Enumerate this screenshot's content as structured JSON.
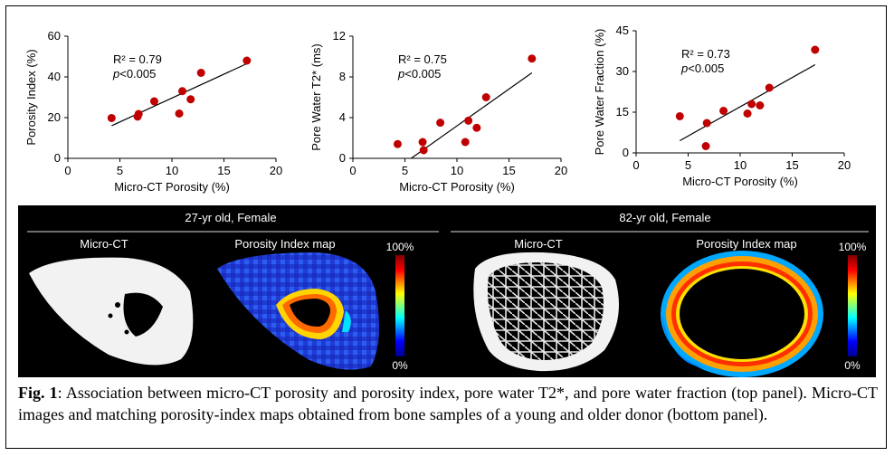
{
  "chart_data": [
    {
      "type": "scatter",
      "xlabel": "Micro-CT Porosity (%)",
      "ylabel": "Porosity Index (%)",
      "xlim": [
        0,
        20
      ],
      "xticks": [
        0,
        5,
        10,
        15,
        20
      ],
      "ylim": [
        0,
        60
      ],
      "yticks": [
        0,
        20,
        40,
        60
      ],
      "r2": "R² = 0.79",
      "p_italic": "p",
      "p_rest": "<0.005",
      "points": [
        [
          4.2,
          19.8
        ],
        [
          6.7,
          20.5
        ],
        [
          6.8,
          21.8
        ],
        [
          8.3,
          28
        ],
        [
          10.7,
          22
        ],
        [
          11.0,
          33
        ],
        [
          11.8,
          29
        ],
        [
          12.8,
          42
        ],
        [
          17.2,
          48
        ]
      ],
      "trend": [
        [
          4.2,
          16
        ],
        [
          17.2,
          46.5
        ]
      ]
    },
    {
      "type": "scatter",
      "xlabel": "Micro-CT Porosity (%)",
      "ylabel": "Pore Water T2* (ms)",
      "xlim": [
        0,
        20
      ],
      "xticks": [
        0,
        5,
        10,
        15,
        20
      ],
      "ylim": [
        0,
        12
      ],
      "yticks": [
        0,
        4,
        8,
        12
      ],
      "r2": "R² = 0.75",
      "p_italic": "p",
      "p_rest": "<0.005",
      "points": [
        [
          4.3,
          1.4
        ],
        [
          6.7,
          1.6
        ],
        [
          6.8,
          0.8
        ],
        [
          8.4,
          3.5
        ],
        [
          10.8,
          1.6
        ],
        [
          11.1,
          3.7
        ],
        [
          11.9,
          3.0
        ],
        [
          12.8,
          6.0
        ],
        [
          17.2,
          9.8
        ]
      ],
      "trend": [
        [
          5.6,
          0.0
        ],
        [
          17.2,
          8.4
        ]
      ]
    },
    {
      "type": "scatter",
      "xlabel": "Micro-CT Porosity (%)",
      "ylabel": "Pore Water Fraction (%)",
      "xlim": [
        0,
        20
      ],
      "xticks": [
        0,
        5,
        10,
        15,
        20
      ],
      "ylim": [
        0,
        45
      ],
      "yticks": [
        0,
        15,
        30,
        45
      ],
      "r2": "R² = 0.73",
      "p_italic": "p",
      "p_rest": "<0.005",
      "points": [
        [
          4.2,
          13.5
        ],
        [
          6.7,
          2.5
        ],
        [
          6.8,
          11
        ],
        [
          8.4,
          15.5
        ],
        [
          10.7,
          14.5
        ],
        [
          11.1,
          18
        ],
        [
          11.9,
          17.5
        ],
        [
          12.8,
          24
        ],
        [
          17.2,
          38
        ]
      ],
      "trend": [
        [
          4.2,
          4.5
        ],
        [
          17.2,
          32.5
        ]
      ]
    }
  ],
  "colors": {
    "point": "#c00000",
    "line": "#000000",
    "panel_bg": "#000000"
  },
  "samples": [
    {
      "title": "27-yr old, Female",
      "microct_label": "Micro-CT",
      "map_label": "Porosity Index map",
      "scale_max": "100%",
      "scale_min": "0%"
    },
    {
      "title": "82-yr old, Female",
      "microct_label": "Micro-CT",
      "map_label": "Porosity Index map",
      "scale_max": "100%",
      "scale_min": "0%"
    }
  ],
  "caption": {
    "fig_label": "Fig. 1",
    "text": ": Association between micro-CT porosity and porosity index, pore water T2*, and pore water fraction (top panel). Micro-CT images and matching porosity-index maps obtained from bone samples of a young and older donor (bottom panel)."
  }
}
